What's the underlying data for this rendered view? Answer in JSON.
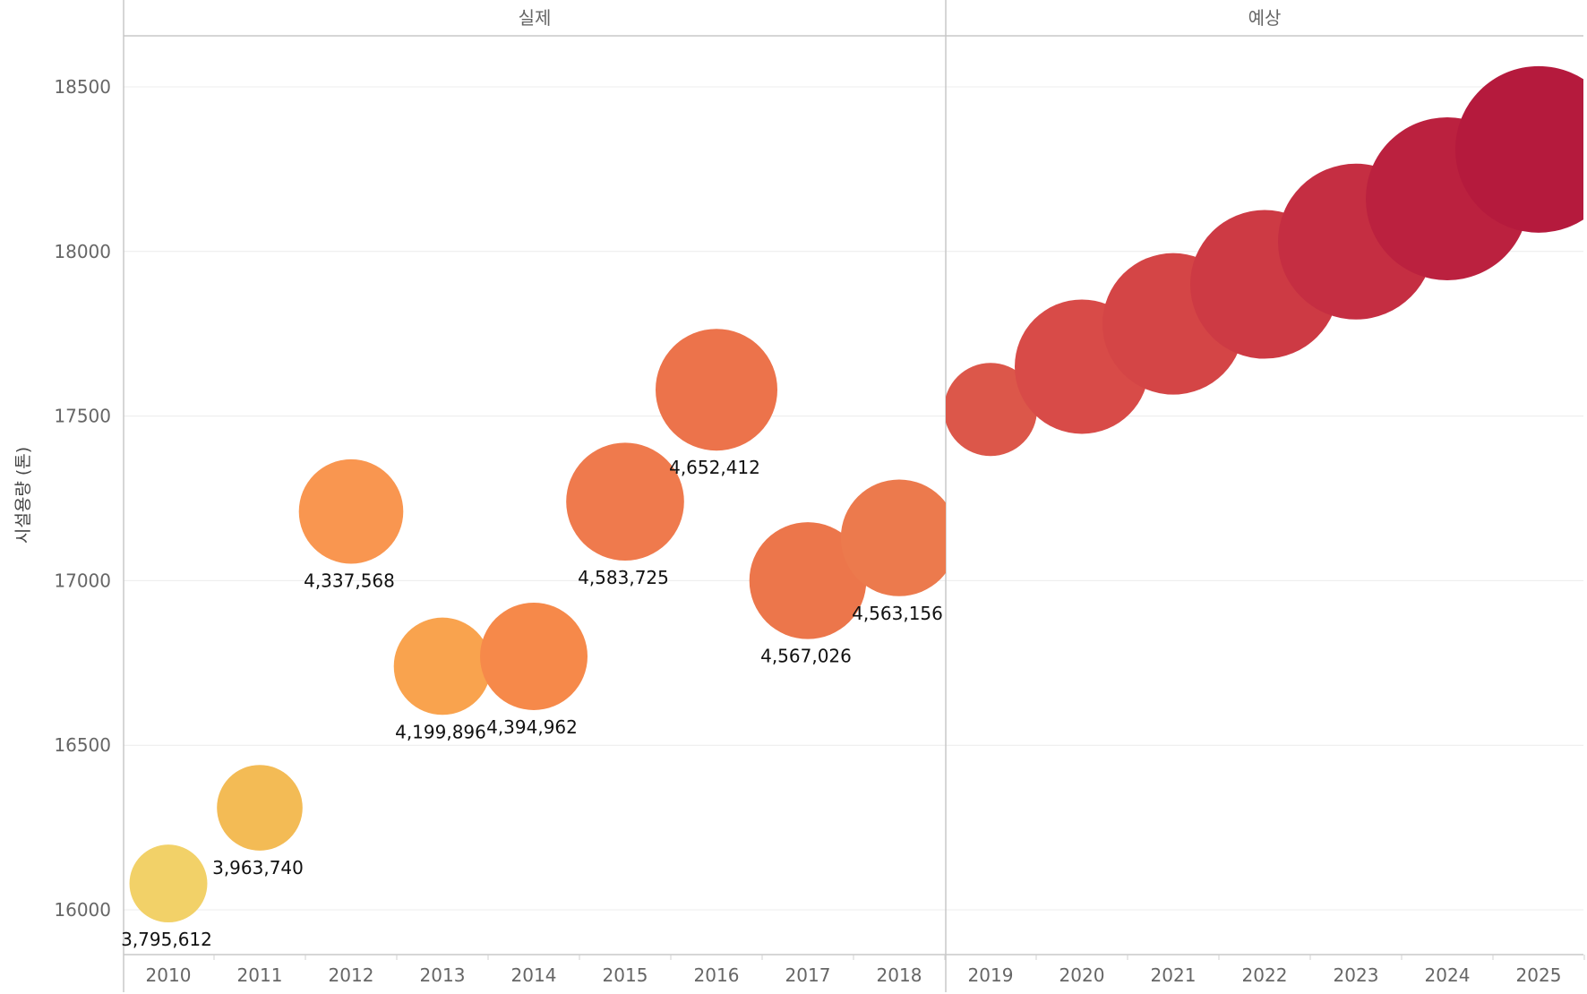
{
  "chart_data": {
    "type": "scatter",
    "encoding": "bubble",
    "panels": [
      "실제",
      "예상"
    ],
    "ylabel": "시설용량 (톤)",
    "ylim": [
      15900,
      18650
    ],
    "yticks": [
      16000,
      16500,
      17000,
      17500,
      18000,
      18500
    ],
    "grid": true,
    "x": [
      "2010",
      "2011",
      "2012",
      "2013",
      "2014",
      "2015",
      "2016",
      "2017",
      "2018",
      "2019",
      "2020",
      "2021",
      "2022",
      "2023",
      "2024",
      "2025"
    ],
    "y": [
      16080,
      16310,
      17210,
      16740,
      16770,
      17240,
      17580,
      17000,
      17130,
      17520,
      17650,
      17780,
      17900,
      18030,
      18160,
      18310
    ],
    "size": [
      3795612,
      3963740,
      4337568,
      4199896,
      4394962,
      4583725,
      4652412,
      4567026,
      4563156,
      null,
      null,
      null,
      null,
      null,
      null,
      null
    ],
    "panel": [
      "실제",
      "실제",
      "실제",
      "실제",
      "실제",
      "실제",
      "실제",
      "실제",
      "실제",
      "예상",
      "예상",
      "예상",
      "예상",
      "예상",
      "예상",
      "예상"
    ],
    "labels": [
      "3,795,612",
      "3,963,740",
      "4,337,568",
      "4,199,896",
      "4,394,962",
      "4,583,725",
      "4,652,412",
      "4,567,026",
      "4,563,156",
      "",
      "",
      "",
      "",
      "",
      "",
      ""
    ],
    "colors": [
      "#f2d168",
      "#f3bb55",
      "#f99650",
      "#f9a34e",
      "#f6894a",
      "#ef7a4d",
      "#ec734b",
      "#ec764b",
      "#ec7a4d",
      "#dc574a",
      "#d84b48",
      "#d44546",
      "#cd3a44",
      "#c52e42",
      "#bb213f",
      "#b51a3d"
    ]
  }
}
